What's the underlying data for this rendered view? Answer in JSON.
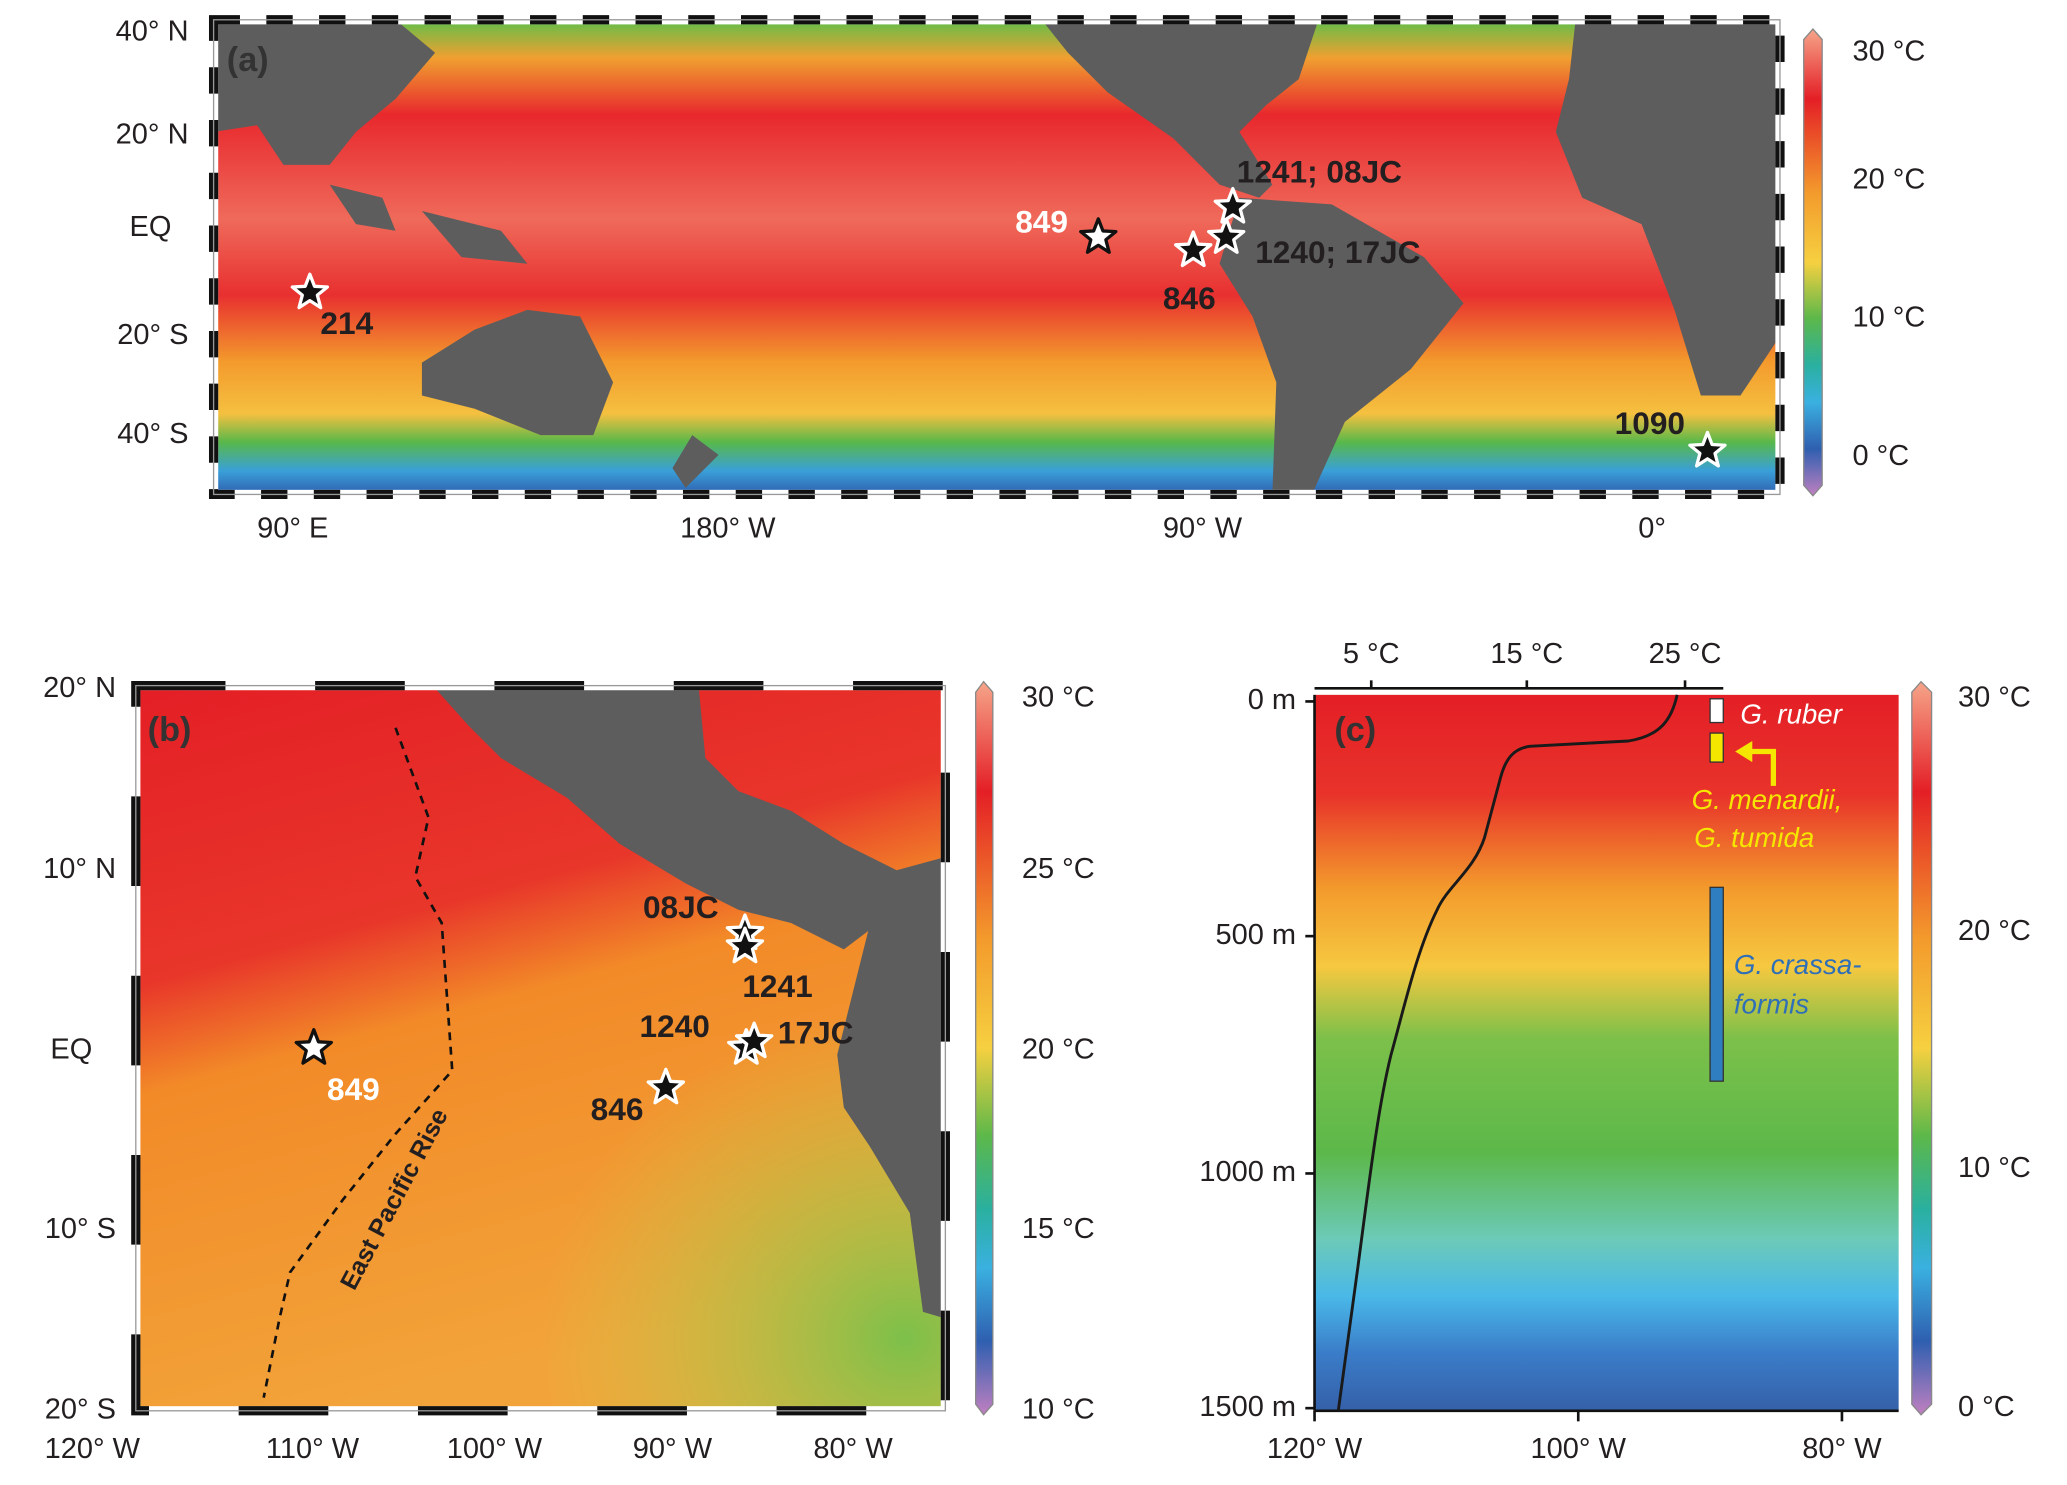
{
  "panel_a": {
    "label": "(a)",
    "lat_labels": [
      "40° N",
      "20° N",
      "EQ",
      "20° S",
      "40° S"
    ],
    "lon_labels": [
      "90° E",
      "180° W",
      "90° W",
      "0°"
    ],
    "colorbar_labels": [
      "30 °C",
      "20 °C",
      "10 °C",
      "0 °C"
    ],
    "sites": [
      "214",
      "849",
      "846",
      "1240; 17JC",
      "1241; 08JC",
      "1090"
    ]
  },
  "panel_b": {
    "label": "(b)",
    "lat_labels": [
      "20° N",
      "10° N",
      "EQ",
      "10° S",
      "20° S"
    ],
    "lon_labels": [
      "120° W",
      "110° W",
      "100° W",
      "90° W",
      "80° W"
    ],
    "colorbar_labels": [
      "30 °C",
      "25 °C",
      "20 °C",
      "15 °C",
      "10 °C"
    ],
    "sites": [
      "849",
      "08JC",
      "1241",
      "1240",
      "17JC",
      "846"
    ],
    "ridge_label": "East Pacific Rise"
  },
  "panel_c": {
    "label": "(c)",
    "temperature_labels": [
      "5 °C",
      "15 °C",
      "25 °C"
    ],
    "depth_labels": [
      "0 m",
      "500 m",
      "1000 m",
      "1500 m"
    ],
    "lon_labels": [
      "120° W",
      "100° W",
      "80° W"
    ],
    "colorbar_labels": [
      "30 °C",
      "20 °C",
      "10 °C",
      "0 °C"
    ],
    "species": [
      "G. ruber",
      "G. menardii,",
      "G. tumida",
      "G. crassa-",
      "formis"
    ]
  }
}
